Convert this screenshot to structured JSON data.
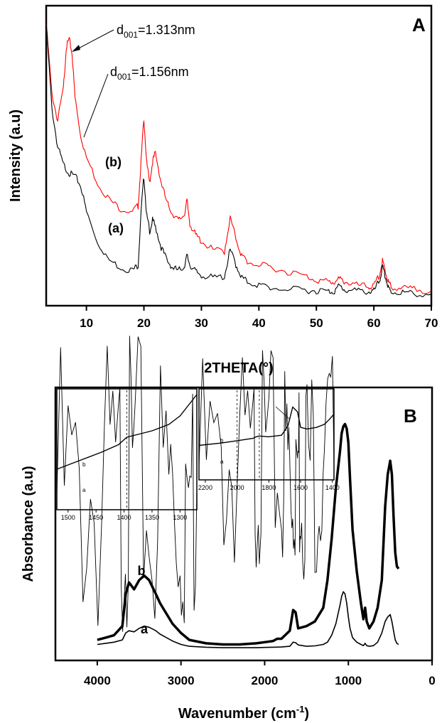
{
  "chart_data": [
    {
      "panel": "A",
      "type": "line",
      "xlabel": "2THETA(°)",
      "ylabel": "Intensity (a.u)",
      "xlim": [
        3,
        70
      ],
      "xticks": [
        "10",
        "20",
        "30",
        "40",
        "50",
        "60",
        "70"
      ],
      "y_tick_labels": false,
      "annotations": [
        {
          "base": "d",
          "sub": "001",
          "rest": "=1.313nm",
          "target_series": "b",
          "target_x": 7
        },
        {
          "base": "d",
          "sub": "001",
          "rest": "=1.156nm",
          "target_series": "a",
          "target_x": 9
        }
      ],
      "series": [
        {
          "name": "(b)",
          "color": "#ff0000",
          "x": [
            3,
            4,
            5,
            6,
            6.5,
            7,
            7.5,
            8,
            9,
            10,
            12,
            14,
            16,
            18,
            19,
            19.5,
            20,
            20.5,
            21,
            21.5,
            22,
            23,
            24,
            25,
            26,
            27,
            27.5,
            28,
            29,
            30,
            32,
            34,
            35,
            36,
            37,
            38,
            40,
            42,
            45,
            48,
            50,
            52,
            53,
            54,
            55,
            57,
            59,
            60,
            61,
            61.5,
            62,
            62.5,
            63,
            65,
            67,
            70
          ],
          "y": [
            940,
            700,
            610,
            720,
            860,
            885,
            840,
            690,
            560,
            485,
            395,
            340,
            310,
            300,
            320,
            470,
            620,
            460,
            400,
            470,
            500,
            400,
            330,
            295,
            270,
            290,
            335,
            260,
            220,
            200,
            170,
            165,
            280,
            210,
            150,
            130,
            118,
            112,
            96,
            82,
            68,
            62,
            60,
            70,
            62,
            50,
            45,
            46,
            85,
            132,
            98,
            62,
            45,
            40,
            36,
            32
          ]
        },
        {
          "name": "(a)",
          "color": "#000000",
          "x": [
            3,
            4,
            5,
            6,
            7,
            8,
            9,
            10,
            12,
            14,
            16,
            18,
            19,
            19.5,
            20,
            20.5,
            21,
            21.5,
            22,
            23,
            24,
            25,
            26,
            27,
            27.5,
            28,
            29,
            30,
            32,
            34,
            35,
            36,
            37,
            38,
            40,
            42,
            45,
            48,
            50,
            52,
            53,
            54,
            55,
            57,
            59,
            60,
            61,
            61.5,
            62,
            62.5,
            63,
            65,
            67,
            70
          ],
          "y": [
            940,
            650,
            520,
            460,
            430,
            420,
            390,
            300,
            195,
            135,
            110,
            100,
            120,
            300,
            420,
            285,
            235,
            270,
            250,
            180,
            135,
            110,
            100,
            115,
            150,
            120,
            95,
            85,
            75,
            80,
            170,
            120,
            78,
            62,
            50,
            42,
            36,
            33,
            32,
            30,
            28,
            48,
            34,
            30,
            28,
            30,
            65,
            110,
            80,
            40,
            28,
            25,
            22,
            20
          ]
        }
      ],
      "curve_labels": [
        "(b)",
        "(a)"
      ]
    },
    {
      "panel": "B",
      "type": "line",
      "xlabel": "Wavenumber (cm",
      "xlabel_sup": "-1",
      "xlabel_end": ")",
      "ylabel": "Absorbance (a.u)",
      "xlim": [
        4500,
        0
      ],
      "xticks": [
        "4000",
        "3000",
        "2000",
        "1000",
        "0"
      ],
      "y_tick_labels": false,
      "series": [
        {
          "name": "b",
          "color": "#000000",
          "x": [
            4000,
            3900,
            3800,
            3700,
            3660,
            3620,
            3560,
            3500,
            3440,
            3380,
            3300,
            3250,
            3200,
            3100,
            3000,
            2900,
            2700,
            2500,
            2300,
            2100,
            2000,
            1900,
            1850,
            1800,
            1700,
            1660,
            1630,
            1600,
            1500,
            1400,
            1300,
            1250,
            1200,
            1150,
            1100,
            1080,
            1060,
            1040,
            1020,
            1000,
            980,
            950,
            900,
            850,
            820,
            800,
            780,
            750,
            700,
            650,
            600,
            560,
            530,
            500,
            480,
            460,
            440,
            420,
            400
          ],
          "y": [
            0.04,
            0.05,
            0.06,
            0.1,
            0.24,
            0.29,
            0.26,
            0.3,
            0.32,
            0.3,
            0.24,
            0.2,
            0.17,
            0.11,
            0.07,
            0.04,
            0.025,
            0.02,
            0.02,
            0.025,
            0.03,
            0.035,
            0.045,
            0.045,
            0.08,
            0.17,
            0.16,
            0.09,
            0.1,
            0.12,
            0.18,
            0.3,
            0.48,
            0.7,
            0.86,
            0.94,
            0.97,
            0.98,
            0.96,
            0.9,
            0.74,
            0.52,
            0.34,
            0.2,
            0.13,
            0.18,
            0.12,
            0.09,
            0.12,
            0.18,
            0.3,
            0.62,
            0.76,
            0.82,
            0.76,
            0.58,
            0.42,
            0.36,
            0.35
          ]
        },
        {
          "name": "a",
          "color": "#000000",
          "x": [
            4000,
            3900,
            3800,
            3700,
            3660,
            3620,
            3560,
            3500,
            3440,
            3380,
            3300,
            3250,
            3200,
            3100,
            3000,
            2900,
            2700,
            2500,
            2300,
            2100,
            2000,
            1900,
            1800,
            1700,
            1660,
            1630,
            1600,
            1500,
            1400,
            1300,
            1250,
            1200,
            1150,
            1100,
            1080,
            1060,
            1040,
            1020,
            1000,
            980,
            950,
            900,
            850,
            820,
            800,
            780,
            750,
            700,
            650,
            600,
            560,
            530,
            500,
            480,
            460,
            440,
            420,
            400
          ],
          "y": [
            0.02,
            0.025,
            0.03,
            0.04,
            0.07,
            0.08,
            0.075,
            0.09,
            0.1,
            0.095,
            0.08,
            0.065,
            0.055,
            0.035,
            0.02,
            0.012,
            0.008,
            0.006,
            0.006,
            0.006,
            0.007,
            0.008,
            0.009,
            0.012,
            0.03,
            0.028,
            0.018,
            0.012,
            0.014,
            0.02,
            0.03,
            0.06,
            0.11,
            0.19,
            0.23,
            0.25,
            0.24,
            0.2,
            0.14,
            0.09,
            0.05,
            0.03,
            0.02,
            0.015,
            0.025,
            0.015,
            0.012,
            0.015,
            0.03,
            0.07,
            0.12,
            0.14,
            0.15,
            0.12,
            0.08,
            0.04,
            0.025,
            0.02
          ]
        }
      ],
      "curve_labels": [
        "b",
        "a"
      ],
      "insets": [
        {
          "xlim": [
            1520,
            1270
          ],
          "xticks": [
            "1500",
            "1450",
            "1400",
            "1350",
            "1300"
          ],
          "dashed_x": [
            1395
          ],
          "series": [
            {
              "name": "b",
              "x": [
                1520,
                1480,
                1440,
                1410,
                1395,
                1380,
                1350,
                1320,
                1300,
                1285,
                1270
              ],
              "y": [
                0.3,
                0.38,
                0.46,
                0.53,
                0.6,
                0.62,
                0.66,
                0.72,
                0.8,
                0.9,
                1.0
              ]
            },
            {
              "name": "a",
              "x": [
                1520,
                1480,
                1440,
                1410,
                1395,
                1380,
                1350,
                1320,
                1300,
                1285,
                1270
              ],
              "y": [
                0.06,
                0.06,
                0.065,
                0.07,
                0.075,
                0.07,
                0.075,
                0.08,
                0.09,
                0.1,
                0.12
              ]
            }
          ]
        },
        {
          "xlim": [
            2240,
            1390
          ],
          "xticks": [
            "2200",
            "2000",
            "1800",
            "1600",
            "1400"
          ],
          "dashed_x": [
            2000,
            1860
          ],
          "series": [
            {
              "name": "b",
              "x": [
                2240,
                2100,
                2000,
                1900,
                1880,
                1860,
                1800,
                1720,
                1680,
                1650,
                1620,
                1600,
                1560,
                1500,
                1450,
                1420,
                1390
              ],
              "y": [
                0.35,
                0.38,
                0.41,
                0.44,
                0.46,
                0.47,
                0.46,
                0.48,
                0.6,
                0.84,
                0.78,
                0.58,
                0.56,
                0.58,
                0.62,
                0.68,
                0.75
              ]
            },
            {
              "name": "a",
              "x": [
                2240,
                2100,
                2000,
                1900,
                1860,
                1800,
                1720,
                1680,
                1650,
                1620,
                1600,
                1560,
                1500,
                1450,
                1390
              ],
              "y": [
                0.08,
                0.08,
                0.085,
                0.085,
                0.09,
                0.09,
                0.09,
                0.12,
                0.2,
                0.16,
                0.1,
                0.09,
                0.09,
                0.095,
                0.1
              ]
            }
          ]
        }
      ]
    }
  ],
  "panel_letters": [
    "A",
    "B"
  ]
}
